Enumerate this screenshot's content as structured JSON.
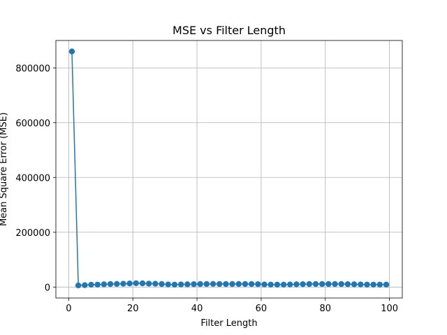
{
  "chart_data": {
    "type": "line",
    "title": "MSE vs Filter Length",
    "xlabel": "Filter Length",
    "ylabel": "Mean Square Error (MSE)",
    "xlim": [
      -4,
      104
    ],
    "ylim": [
      -40000,
      900000
    ],
    "xticks": [
      0,
      20,
      40,
      60,
      80,
      100
    ],
    "yticks": [
      0,
      200000,
      400000,
      600000,
      800000
    ],
    "xtick_labels": [
      "0",
      "20",
      "40",
      "60",
      "80",
      "100"
    ],
    "ytick_labels": [
      "0",
      "200000",
      "400000",
      "600000",
      "800000"
    ],
    "grid": true,
    "marker": "circle",
    "color": "#1f77b4",
    "series": [
      {
        "x": [
          1,
          3,
          5,
          7,
          9,
          11,
          13,
          15,
          17,
          19,
          21,
          23,
          25,
          27,
          29,
          31,
          33,
          35,
          37,
          39,
          41,
          43,
          45,
          47,
          49,
          51,
          53,
          55,
          57,
          59,
          61,
          63,
          65,
          67,
          69,
          71,
          73,
          75,
          77,
          79,
          81,
          83,
          85,
          87,
          89,
          91,
          93,
          95,
          97,
          99
        ],
        "y": [
          860000,
          6000,
          7000,
          8500,
          9000,
          10000,
          11000,
          11500,
          12000,
          13000,
          14000,
          13500,
          12500,
          12000,
          11000,
          9500,
          9000,
          9500,
          10000,
          10500,
          11000,
          11000,
          11500,
          11000,
          11000,
          11000,
          11000,
          11000,
          11000,
          10500,
          9500,
          9000,
          9000,
          9000,
          9500,
          10000,
          10500,
          11000,
          11000,
          11000,
          11000,
          11000,
          11000,
          10500,
          10000,
          9500,
          9000,
          9000,
          9000,
          9000
        ]
      }
    ]
  }
}
